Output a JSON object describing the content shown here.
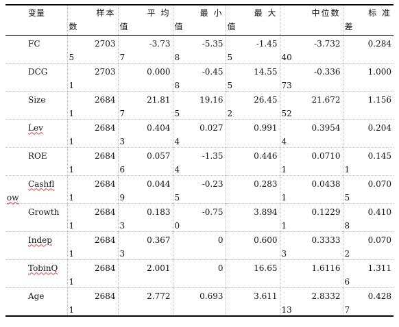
{
  "headers": [
    {
      "top": "变量",
      "bot": ""
    },
    {
      "top": "样本",
      "bot": "数"
    },
    {
      "top": "平 均",
      "bot": "值"
    },
    {
      "top": "最 小",
      "bot": "值"
    },
    {
      "top": "最 大",
      "bot": "值"
    },
    {
      "top": "中位数",
      "bot": ""
    },
    {
      "top": "标 准",
      "bot": "差"
    }
  ],
  "rows": [
    {
      "name": "FC",
      "name_bot": "",
      "spell": false,
      "cells": [
        {
          "top": "2703",
          "bot": "5"
        },
        {
          "top": "-3.73",
          "bot": "7"
        },
        {
          "top": "-5.35",
          "bot": "8"
        },
        {
          "top": "-1.45",
          "bot": "5"
        },
        {
          "top": "-3.732",
          "bot": "40"
        },
        {
          "top": "0.284",
          "bot": ""
        }
      ]
    },
    {
      "name": "DCG",
      "name_bot": "",
      "spell": false,
      "cells": [
        {
          "top": "2703",
          "bot": "1"
        },
        {
          "top": "0.000",
          "bot": ""
        },
        {
          "top": "-0.45",
          "bot": "8"
        },
        {
          "top": "14.55",
          "bot": "5"
        },
        {
          "top": "-0.336",
          "bot": "73"
        },
        {
          "top": "1.000",
          "bot": ""
        }
      ]
    },
    {
      "name": "Size",
      "name_bot": "",
      "spell": false,
      "cells": [
        {
          "top": "2684",
          "bot": "1"
        },
        {
          "top": "21.81",
          "bot": "7"
        },
        {
          "top": "19.16",
          "bot": "5"
        },
        {
          "top": "26.45",
          "bot": "2"
        },
        {
          "top": "21.672",
          "bot": "52"
        },
        {
          "top": "1.156",
          "bot": ""
        }
      ]
    },
    {
      "name": "Lev",
      "name_bot": "",
      "spell": true,
      "cells": [
        {
          "top": "2684",
          "bot": "1"
        },
        {
          "top": "0.404",
          "bot": "3"
        },
        {
          "top": "0.027",
          "bot": "4"
        },
        {
          "top": "0.991",
          "bot": ""
        },
        {
          "top": "0.3954",
          "bot": "4"
        },
        {
          "top": "0.204",
          "bot": ""
        }
      ]
    },
    {
      "name": "ROE",
      "name_bot": "",
      "spell": false,
      "cells": [
        {
          "top": "2684",
          "bot": "1"
        },
        {
          "top": "0.057",
          "bot": "6"
        },
        {
          "top": "-1.35",
          "bot": "4"
        },
        {
          "top": "0.446",
          "bot": ""
        },
        {
          "top": "0.0710",
          "bot": "1"
        },
        {
          "top": "0.145",
          "bot": "1"
        }
      ]
    },
    {
      "name": "Cashfl",
      "name_bot": "ow",
      "spell": true,
      "cells": [
        {
          "top": "2684",
          "bot": "1"
        },
        {
          "top": "0.044",
          "bot": "9"
        },
        {
          "top": "-0.23",
          "bot": "5"
        },
        {
          "top": "0.283",
          "bot": ""
        },
        {
          "top": "0.0438",
          "bot": "1"
        },
        {
          "top": "0.070",
          "bot": "5"
        }
      ]
    },
    {
      "name": "Growth",
      "name_bot": "",
      "spell": false,
      "cells": [
        {
          "top": "2684",
          "bot": "1"
        },
        {
          "top": "0.183",
          "bot": "3"
        },
        {
          "top": "-0.75",
          "bot": "0"
        },
        {
          "top": "3.894",
          "bot": ""
        },
        {
          "top": "0.1229",
          "bot": "1"
        },
        {
          "top": "0.410",
          "bot": "8"
        }
      ]
    },
    {
      "name": "Indep",
      "name_bot": "",
      "spell": true,
      "cells": [
        {
          "top": "2684",
          "bot": "1"
        },
        {
          "top": "0.367",
          "bot": "3"
        },
        {
          "top": "0",
          "bot": ""
        },
        {
          "top": "0.600",
          "bot": ""
        },
        {
          "top": "0.3333",
          "bot": "3"
        },
        {
          "top": "0.070",
          "bot": "2"
        }
      ]
    },
    {
      "name": "TobinQ",
      "name_bot": "",
      "spell": true,
      "cells": [
        {
          "top": "2684",
          "bot": "1"
        },
        {
          "top": "2.001",
          "bot": ""
        },
        {
          "top": "0",
          "bot": ""
        },
        {
          "top": "16.65",
          "bot": ""
        },
        {
          "top": "1.6116",
          "bot": ""
        },
        {
          "top": "1.311",
          "bot": "6"
        }
      ]
    },
    {
      "name": "Age",
      "name_bot": "",
      "spell": false,
      "cells": [
        {
          "top": "2684",
          "bot": "1"
        },
        {
          "top": "2.772",
          "bot": ""
        },
        {
          "top": "0.693",
          "bot": ""
        },
        {
          "top": "3.611",
          "bot": ""
        },
        {
          "top": "2.8332",
          "bot": "13"
        },
        {
          "top": "0.428",
          "bot": "7"
        }
      ]
    }
  ]
}
